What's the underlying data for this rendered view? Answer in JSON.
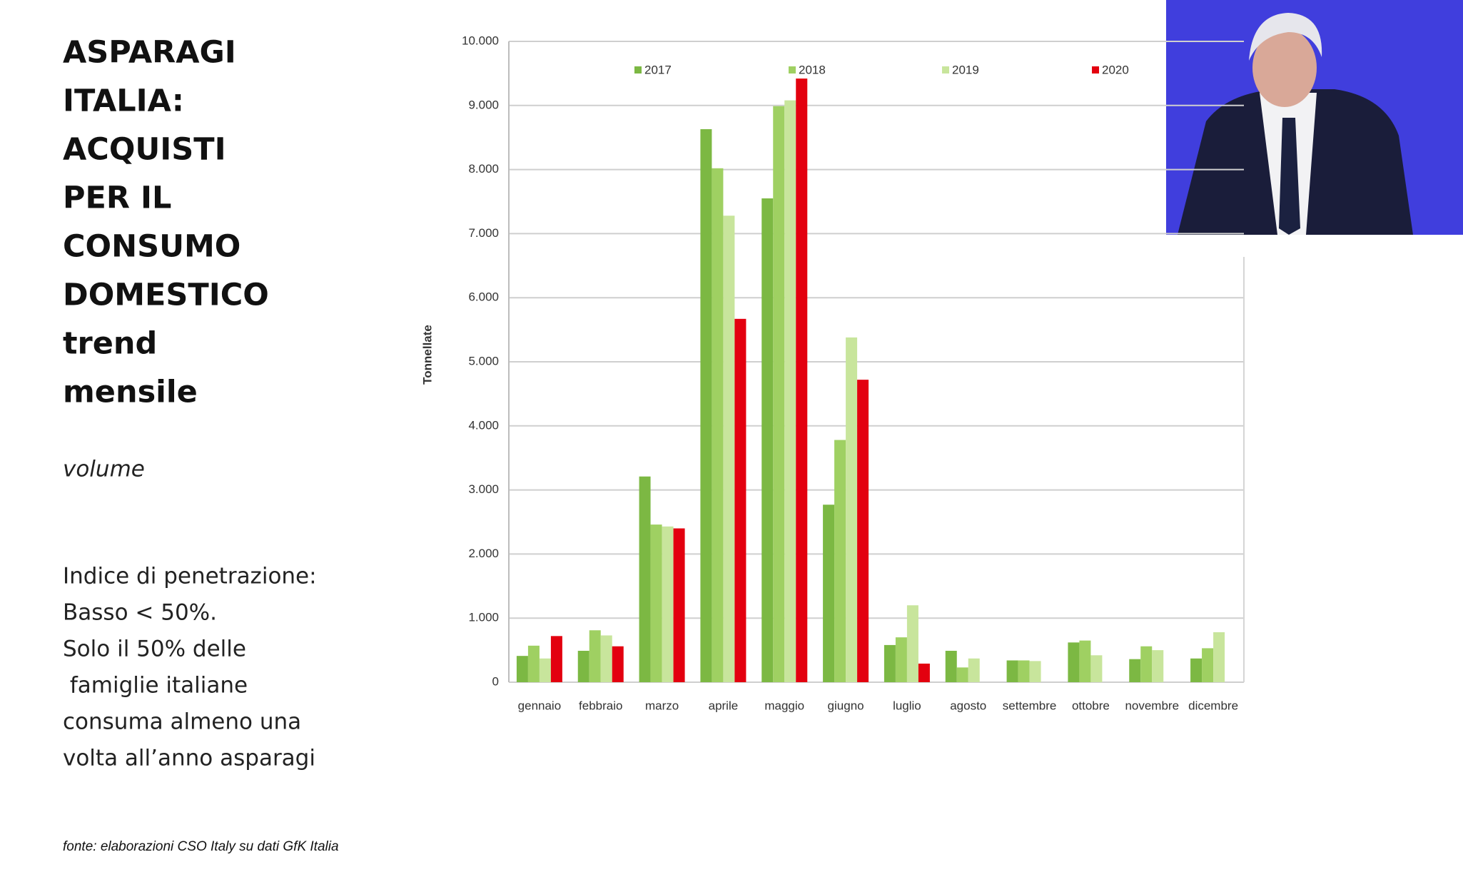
{
  "slide": {
    "title_lines": [
      "ASPARAGI",
      "ITALIA:",
      "ACQUISTI",
      "PER IL",
      "CONSUMO",
      "DOMESTICO",
      "trend",
      "mensile"
    ],
    "subtitle": "volume",
    "note_lines": [
      "Indice di penetrazione:",
      "Basso < 50%.",
      "Solo il 50% delle",
      " famiglie italiane",
      "consuma almeno una",
      "volta all’anno asparagi"
    ],
    "source": "fonte: elaborazioni CSO Italy su dati GfK Italia"
  },
  "chart_data": {
    "type": "bar",
    "y_label": "Tonnellate",
    "categories": [
      "gennaio",
      "febbraio",
      "marzo",
      "aprile",
      "maggio",
      "giugno",
      "luglio",
      "agosto",
      "settembre",
      "ottobre",
      "novembre",
      "dicembre"
    ],
    "series": [
      {
        "name": "2017",
        "color": "#7cb843",
        "values": [
          410,
          490,
          3210,
          8630,
          7550,
          2770,
          580,
          490,
          340,
          620,
          360,
          370
        ]
      },
      {
        "name": "2018",
        "color": "#9fd062",
        "values": [
          570,
          810,
          2460,
          8020,
          8990,
          3780,
          700,
          230,
          340,
          650,
          560,
          530
        ]
      },
      {
        "name": "2019",
        "color": "#c8e59c",
        "values": [
          370,
          730,
          2430,
          7280,
          9080,
          5380,
          1200,
          370,
          330,
          420,
          500,
          780
        ]
      },
      {
        "name": "2020",
        "color": "#e3000f",
        "values": [
          720,
          560,
          2400,
          5670,
          9420,
          4720,
          290,
          null,
          null,
          null,
          null,
          null
        ]
      }
    ],
    "ylim": [
      0,
      10000
    ],
    "yticks": [
      0,
      {
        "value": 1000,
        "label": "1.000"
      },
      {
        "value": 2000,
        "label": "2.000"
      },
      {
        "value": 3000,
        "label": "3.000"
      },
      {
        "value": 4000,
        "label": "4.000"
      },
      {
        "value": 5000,
        "label": "5.000"
      },
      {
        "value": 6000,
        "label": "6.000"
      },
      {
        "value": 7000,
        "label": "7.000"
      },
      {
        "value": 8000,
        "label": "8.000"
      },
      {
        "value": 9000,
        "label": "9.000"
      },
      {
        "value": 10000,
        "label": "10.000"
      }
    ],
    "grid": true,
    "legend": "top"
  }
}
